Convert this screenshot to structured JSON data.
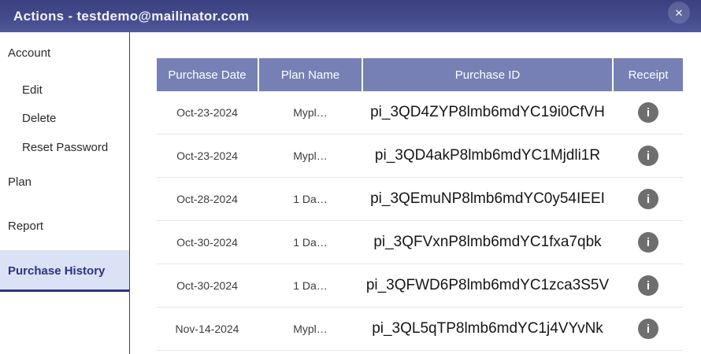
{
  "header": {
    "title": "Actions - testdemo@mailinator.com",
    "close_glyph": "✕"
  },
  "sidebar": {
    "items": [
      {
        "label": "Account",
        "indent": false,
        "active": false
      },
      {
        "label": "Edit",
        "indent": true,
        "active": false
      },
      {
        "label": "Delete",
        "indent": true,
        "active": false
      },
      {
        "label": "Reset Password",
        "indent": true,
        "active": false
      },
      {
        "label": "Plan",
        "indent": false,
        "active": false
      },
      {
        "label": "Report",
        "indent": false,
        "active": false
      },
      {
        "label": "Purchase History",
        "indent": false,
        "active": true
      }
    ]
  },
  "table": {
    "columns": [
      "Purchase Date",
      "Plan Name",
      "Purchase ID",
      "Receipt"
    ],
    "receipt_icon_glyph": "i",
    "rows": [
      {
        "purchase_date": "Oct-23-2024",
        "plan_name": "Mypl…",
        "purchase_id": "pi_3QD4ZYP8lmb6mdYC19i0CfVH"
      },
      {
        "purchase_date": "Oct-23-2024",
        "plan_name": "Mypl…",
        "purchase_id": "pi_3QD4akP8lmb6mdYC1Mjdli1R"
      },
      {
        "purchase_date": "Oct-28-2024",
        "plan_name": "1 Da…",
        "purchase_id": "pi_3QEmuNP8lmb6mdYC0y54IEEI"
      },
      {
        "purchase_date": "Oct-30-2024",
        "plan_name": "1 Da…",
        "purchase_id": "pi_3QFVxnP8lmb6mdYC1fxa7qbk"
      },
      {
        "purchase_date": "Oct-30-2024",
        "plan_name": "1 Da…",
        "purchase_id": "pi_3QFWD6P8lmb6mdYC1zca3S5V"
      },
      {
        "purchase_date": "Nov-14-2024",
        "plan_name": "Mypl…",
        "purchase_id": "pi_3QL5qTP8lmb6mdYC1j4VYvNk"
      }
    ]
  },
  "colors": {
    "titlebar_gradient_top": "#3b4080",
    "titlebar_gradient_bottom": "#525a9e",
    "table_header_bg": "#7680b4",
    "active_item_bg": "#dbe2f6",
    "active_item_text": "#2b3480",
    "info_icon_bg": "#6e6e6e",
    "row_separator": "#e8e8e8"
  }
}
